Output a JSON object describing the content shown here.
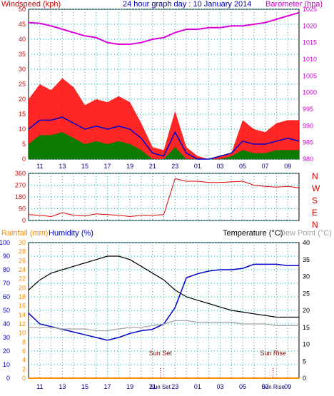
{
  "title": "24 hour graph day : 10 January 2014",
  "colors": {
    "plot_bg": "#ffffff",
    "grid": "#2aa0a0",
    "axis": "#000000",
    "wind_gust": "#ff0000",
    "wind_avg": "#0000cc",
    "wind_low": "#008000",
    "barometer": "#dd00dd",
    "direction": "#dd0000",
    "rain": "#ff8c00",
    "humidity": "#0000cc",
    "temperature": "#000000",
    "dewpoint": "#a0a0a0",
    "rain_label": "#ff8c00",
    "humidity_label": "#0000cc",
    "dew_label": "#a0a0a0"
  },
  "chart_data": [
    {
      "type": "line",
      "panel": "wind",
      "title": "24 hour graph day : 10 January 2014",
      "ylabel_left": "Windspeed (kph)",
      "ylabel_right": "Barometer (hpa)",
      "ylim_left": [
        0,
        50
      ],
      "ylim_right": [
        980,
        1025
      ],
      "yticks_left": [
        "0",
        "5",
        "10",
        "15",
        "20",
        "25",
        "30",
        "35",
        "40",
        "45",
        "50"
      ],
      "yticks_right": [
        "980",
        "985",
        "990",
        "995",
        "1000",
        "1005",
        "1010",
        "1015",
        "1020",
        "1025"
      ],
      "x_ticks": [
        "11",
        "13",
        "15",
        "17",
        "19",
        "21",
        "23",
        "01",
        "03",
        "05",
        "07",
        "09"
      ],
      "x_hours": [
        10,
        11,
        12,
        13,
        14,
        15,
        16,
        17,
        18,
        19,
        20,
        21,
        22,
        23,
        24,
        25,
        26,
        27,
        28,
        29,
        30,
        31,
        32,
        33,
        34
      ],
      "series": [
        {
          "key": "gust",
          "values": [
            20,
            25,
            23,
            27,
            24,
            18,
            20,
            19,
            21,
            19,
            12,
            4,
            3,
            16,
            4,
            1,
            0,
            1,
            2,
            13,
            10,
            9,
            12,
            13,
            13
          ]
        },
        {
          "key": "avg",
          "values": [
            10,
            13,
            13,
            14,
            12,
            10,
            11,
            10,
            11,
            10,
            7,
            2,
            1,
            9,
            2,
            0,
            0,
            1,
            2,
            6,
            5,
            5,
            6,
            7,
            6
          ]
        },
        {
          "key": "low",
          "values": [
            5,
            8,
            8,
            9,
            7,
            5,
            6,
            5,
            6,
            5,
            3,
            0,
            0,
            4,
            0,
            0,
            0,
            0,
            1,
            3,
            2,
            2,
            3,
            3,
            3
          ]
        },
        {
          "key": "pressure",
          "values": [
            1021,
            1020.8,
            1020,
            1019,
            1018,
            1017,
            1016.5,
            1015,
            1014.5,
            1014.5,
            1015,
            1016,
            1016.5,
            1018,
            1019,
            1019,
            1019.5,
            1019.5,
            1020,
            1020,
            1020.5,
            1021,
            1022,
            1023,
            1024
          ]
        }
      ]
    },
    {
      "type": "line",
      "panel": "direction",
      "ylim": [
        0,
        360
      ],
      "yticks": [
        "0",
        "90",
        "180",
        "270",
        "360"
      ],
      "compass_labels": [
        "N",
        "W",
        "S",
        "E",
        "N"
      ],
      "x_hours": [
        10,
        11,
        12,
        13,
        14,
        15,
        16,
        17,
        18,
        19,
        20,
        21,
        22,
        23,
        24,
        25,
        26,
        27,
        28,
        29,
        30,
        31,
        32,
        33,
        34
      ],
      "values": [
        45,
        40,
        30,
        60,
        40,
        35,
        50,
        45,
        40,
        30,
        40,
        40,
        45,
        320,
        300,
        300,
        290,
        290,
        295,
        300,
        270,
        260,
        255,
        260,
        250
      ]
    },
    {
      "type": "line",
      "panel": "humidity_temp",
      "ylabel_rain": "Rainfall (mm)",
      "ylabel_humidity": "Humidity (%)",
      "ylabel_temperature": "Temperature (°C)",
      "ylabel_dewpoint": "Dew Point (°C)",
      "ylim_humidity": [
        0,
        100
      ],
      "ylim_rain": [
        0,
        30
      ],
      "ylim_temp": [
        0,
        40
      ],
      "yticks_humidity": [
        "0",
        "10",
        "20",
        "30",
        "40",
        "50",
        "60",
        "70",
        "80",
        "90",
        "100"
      ],
      "yticks_rain": [
        "0",
        "2",
        "4",
        "6",
        "8",
        "10",
        "12",
        "14",
        "16",
        "18",
        "20",
        "22",
        "24",
        "26",
        "28",
        "30"
      ],
      "yticks_temp": [
        "0",
        "5",
        "10",
        "15",
        "20",
        "25",
        "30",
        "35",
        "40"
      ],
      "x_ticks": [
        "11",
        "13",
        "15",
        "17",
        "19",
        "21",
        "23",
        "01",
        "03",
        "05",
        "07",
        "09"
      ],
      "x_hours": [
        10,
        11,
        12,
        13,
        14,
        15,
        16,
        17,
        18,
        19,
        20,
        21,
        22,
        23,
        24,
        25,
        26,
        27,
        28,
        29,
        30,
        31,
        32,
        33,
        34
      ],
      "annotations": [
        {
          "label": "Sun Set",
          "hour": 21.7
        },
        {
          "label": "Sun Rise",
          "hour": 31.7
        }
      ],
      "bottom_labels": [
        "Sun Set",
        "Sun Rise"
      ],
      "series": [
        {
          "key": "temperature",
          "values": [
            26,
            29,
            31,
            32,
            33,
            34,
            35,
            36,
            36,
            35,
            33,
            31,
            29,
            26,
            24,
            23,
            22,
            21,
            20,
            19.5,
            19,
            18.5,
            18,
            18,
            18
          ]
        },
        {
          "key": "humidity",
          "values": [
            48,
            40,
            38,
            36,
            34,
            32,
            30,
            28,
            30,
            33,
            35,
            36,
            40,
            52,
            74,
            77,
            79,
            80,
            80,
            81,
            84,
            84,
            84,
            83,
            83
          ]
        },
        {
          "key": "dewpoint",
          "values": [
            15,
            15,
            15,
            14.5,
            14.5,
            14.5,
            14,
            14,
            14.5,
            15,
            15,
            15.5,
            16,
            17,
            17,
            16.5,
            16.5,
            16.5,
            16.5,
            16,
            16,
            16,
            15.5,
            15.5,
            15.5
          ]
        },
        {
          "key": "rain",
          "values": [
            0,
            0,
            0,
            0,
            0,
            0,
            0,
            0,
            0,
            0,
            0,
            0,
            0,
            0,
            0,
            0,
            0,
            0,
            0,
            0,
            0,
            0,
            0,
            0,
            0
          ]
        }
      ]
    }
  ]
}
